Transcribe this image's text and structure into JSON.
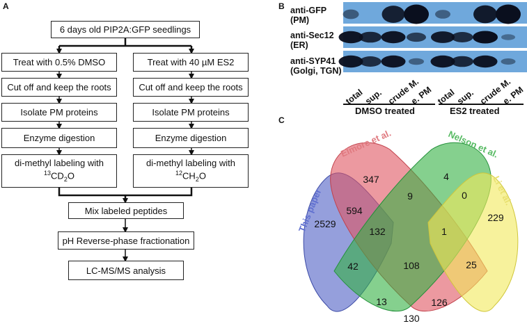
{
  "panels": {
    "a": "A",
    "b": "B",
    "c": "C"
  },
  "workflow": {
    "start": "6 days old PIP2A:GFP seedlings",
    "left": {
      "treat": "Treat with 0.5% DMSO",
      "cut": "Cut off and keep the roots",
      "isolate": "Isolate PM proteins",
      "digest": "Enzyme digestion",
      "label_line1": "di-methyl labeling with",
      "label_sup": "13",
      "label_base": "CD",
      "label_sub": "2",
      "label_end": "O"
    },
    "right": {
      "treat": "Treat with 40 µM ES2",
      "cut": "Cut off and keep the roots",
      "isolate": "Isolate PM proteins",
      "digest": "Enzyme digestion",
      "label_line1": "di-methyl labeling with",
      "label_sup": "12",
      "label_base": "CH",
      "label_sub": "2",
      "label_end": "O"
    },
    "mix": "Mix labeled peptides",
    "frac": "pH Reverse-phase fractionation",
    "lcms": "LC-MS/MS analysis"
  },
  "blot": {
    "rows": [
      {
        "line1": "anti-GFP",
        "line2": "(PM)"
      },
      {
        "line1": "anti-Sec12",
        "line2": "(ER)"
      },
      {
        "line1": "anti-SYP41",
        "line2": "(Golgi, TGN)"
      }
    ],
    "lanes": [
      "total",
      "sup.",
      "crude M.",
      "e. PM",
      "total",
      "sup.",
      "crude M.",
      "e. PM"
    ],
    "groups": [
      "DMSO treated",
      "ES2 treated"
    ],
    "band_intensity": [
      [
        0.35,
        0.0,
        0.85,
        1.0,
        0.3,
        0.0,
        0.9,
        1.0
      ],
      [
        0.95,
        0.8,
        0.95,
        0.6,
        0.9,
        0.75,
        1.0,
        0.2
      ],
      [
        0.95,
        0.75,
        0.95,
        0.3,
        0.95,
        0.8,
        0.95,
        0.25
      ]
    ],
    "colors": {
      "background": "#6fa8dc",
      "band": "#0a0f1e"
    }
  },
  "venn": {
    "sets": [
      {
        "name": "This paper",
        "color": "#4f5fc4"
      },
      {
        "name": "Elmore et al.",
        "color": "#e05560"
      },
      {
        "name": "Nelson et al.",
        "color": "#33b042"
      },
      {
        "name": "Li et al.",
        "color": "#f2ea5a"
      }
    ],
    "counts": {
      "this_only": "2529",
      "elmore_only": "347",
      "nelson_only": "4",
      "li_only": "229",
      "this_elmore": "594",
      "elmore_nelson": "9",
      "nelson_li": "0",
      "this_elmore_nelson": "132",
      "elmore_nelson_li": "1",
      "this_nelson": "42",
      "all": "108",
      "elmore_li": "25",
      "this_nelson_li": "13",
      "this_elmore_li": "126",
      "this_li": "130"
    }
  }
}
